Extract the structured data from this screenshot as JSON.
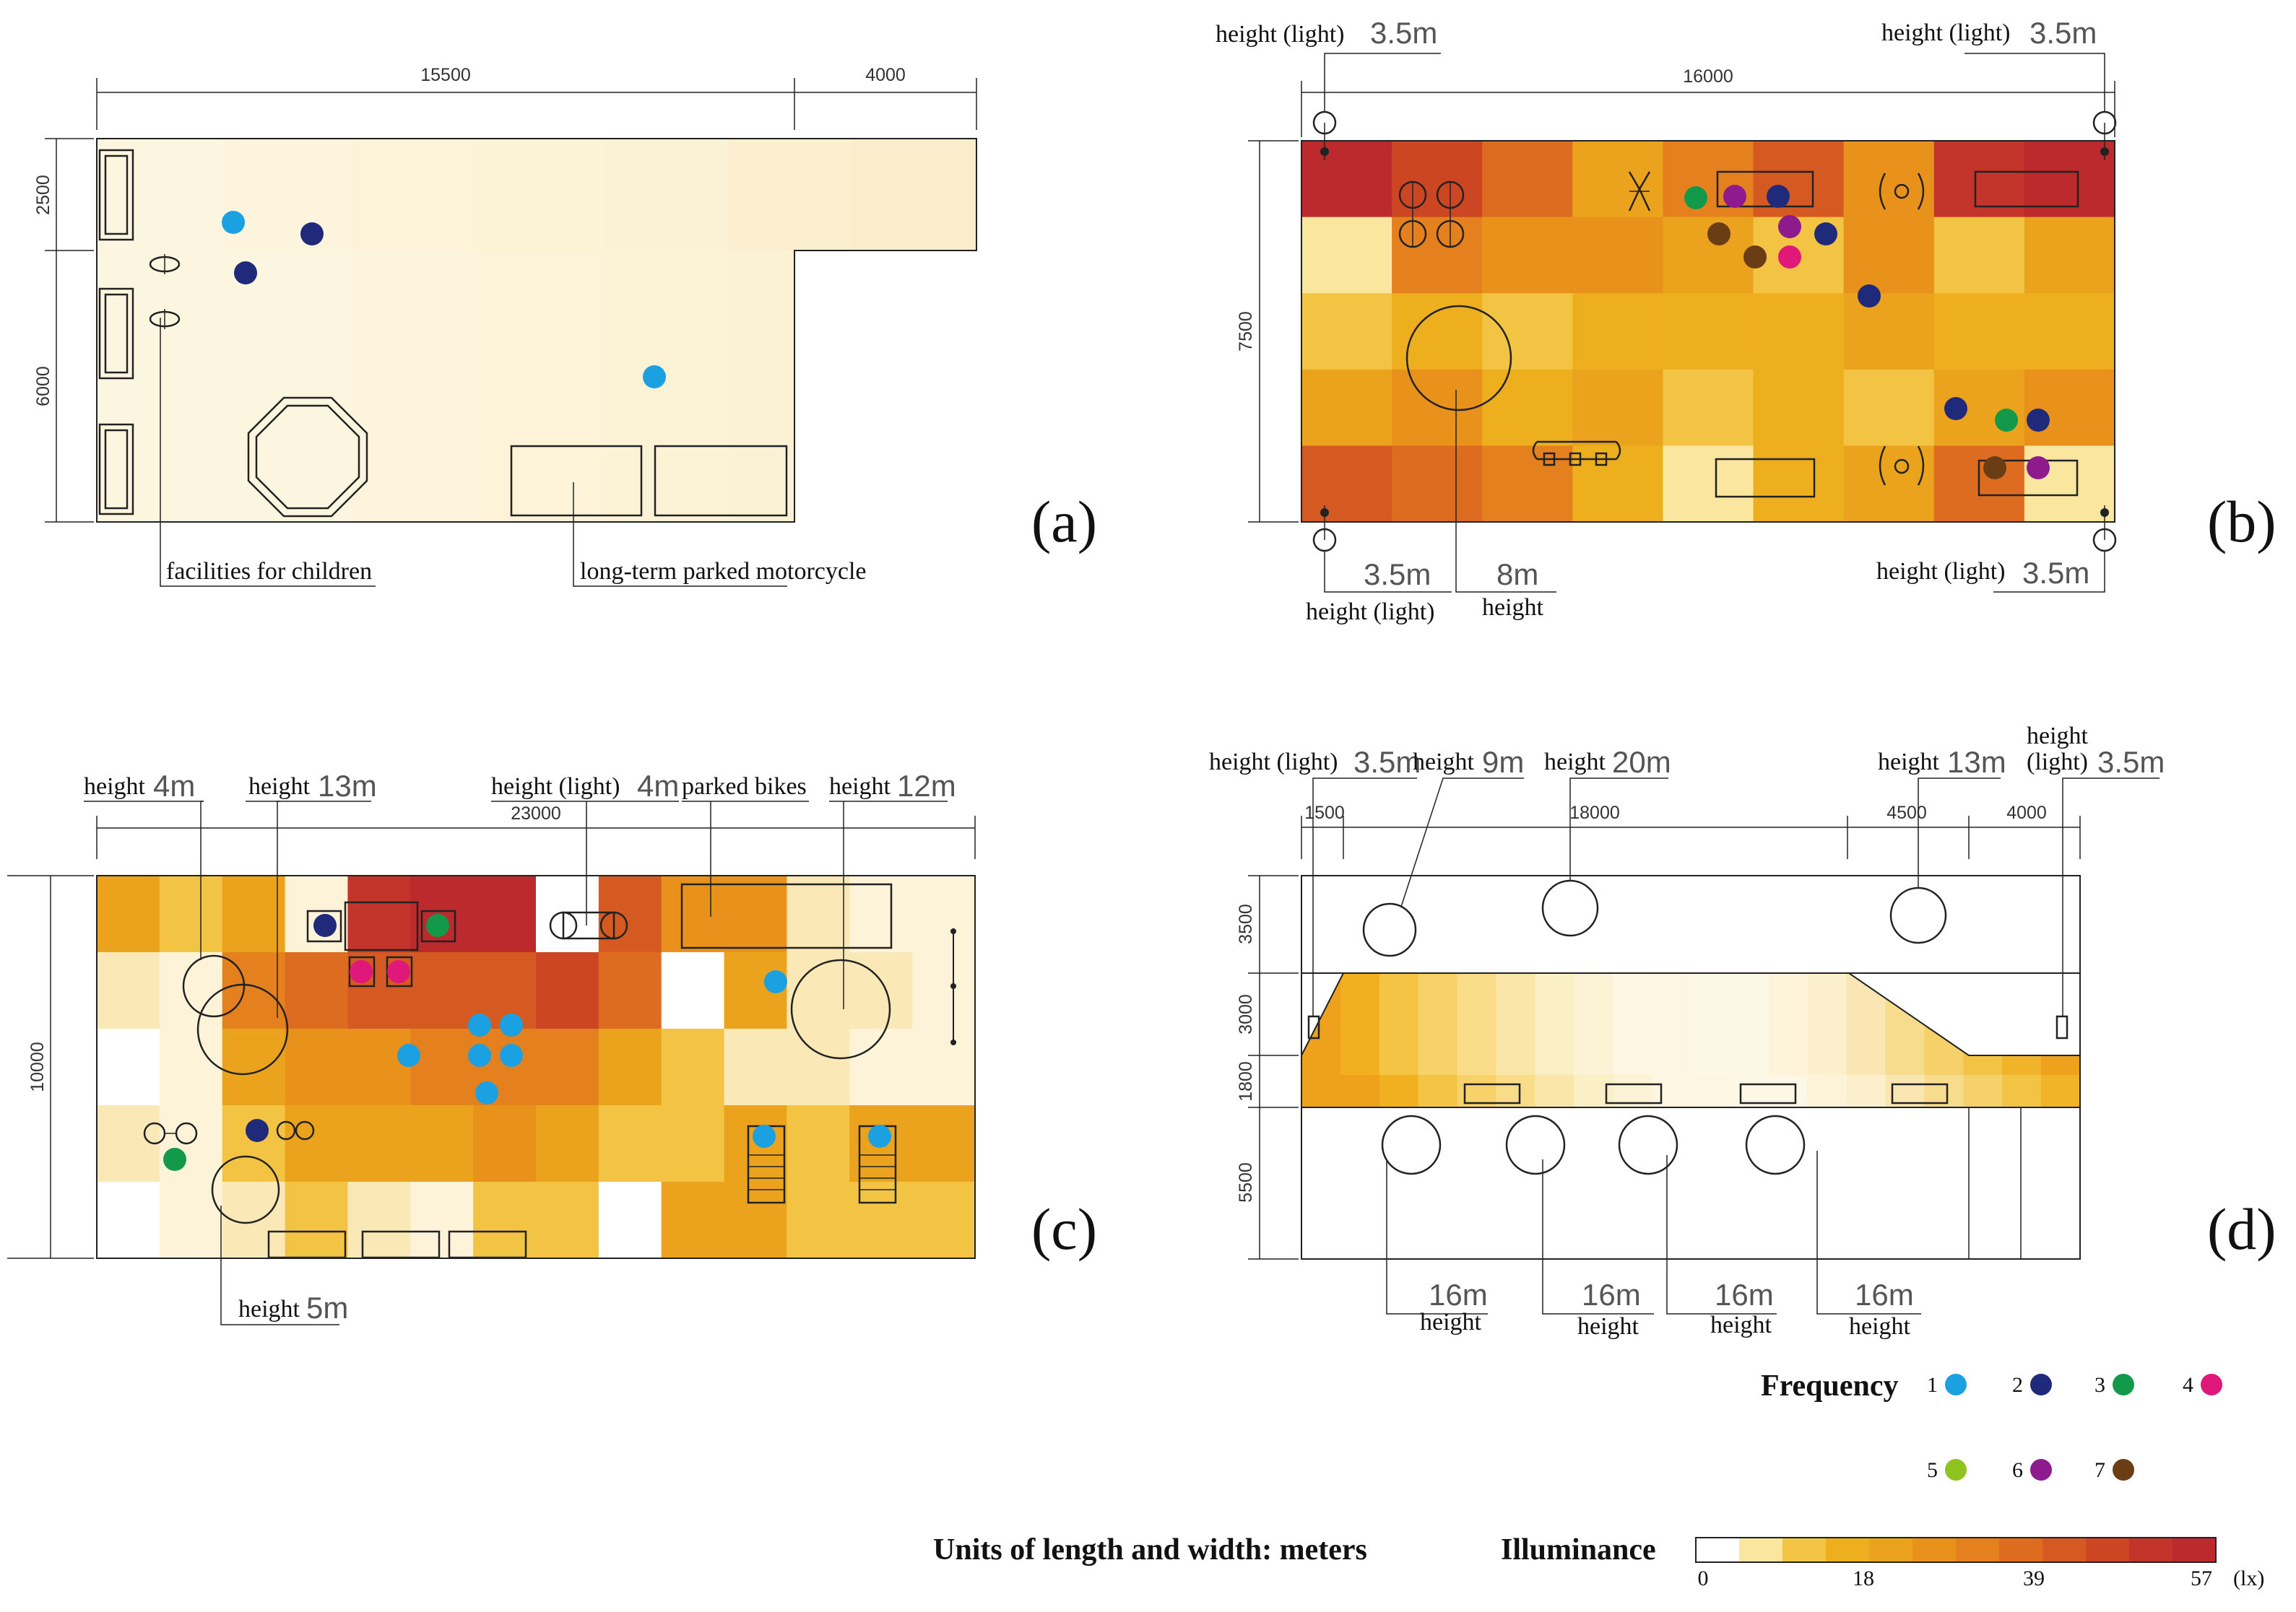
{
  "colors": {
    "freq": {
      "1": "#1ba1e2",
      "2": "#1f2a7a",
      "3": "#129a4a",
      "4": "#e0187a",
      "5": "#8fc31f",
      "6": "#8e1b8e",
      "7": "#6b3d14"
    },
    "scale": [
      "#ffffff",
      "#fbe6a0",
      "#f3c444",
      "#eeaf1f",
      "#eba21c",
      "#e8921c",
      "#e4801e",
      "#de6c20",
      "#d55a22",
      "#cc4624",
      "#c3342a",
      "#bd2a2e"
    ]
  },
  "panel_a": {
    "letter": "(a)",
    "dim_top_1": "15500",
    "dim_top_2": "4000",
    "dim_left_1": "2500",
    "dim_left_2": "6000",
    "label_children": "facilities for children",
    "label_motorcycle": "long-term parked motorcycle"
  },
  "panel_b": {
    "letter": "(b)",
    "dim_top": "16000",
    "dim_left": "7500",
    "tl_label": "height (light)",
    "tl_value": "3.5m",
    "tr_label": "height (light)",
    "tr_value": "3.5m",
    "bl_value": "3.5m",
    "bl_label": "height (light)",
    "tree_value": "8m",
    "tree_label": "height",
    "br_label": "height (light)",
    "br_value": "3.5m"
  },
  "panel_c": {
    "letter": "(c)",
    "dim_top": "23000",
    "dim_left": "10000",
    "h1_label": "height",
    "h1_value": "4m",
    "h2_label": "height",
    "h2_value": "13m",
    "h3_label": "height (light)",
    "h3_value": "4m",
    "bikes_label": "parked bikes",
    "h4_label": "height",
    "h4_value": "12m",
    "h5_label": "height",
    "h5_value": "5m"
  },
  "panel_d": {
    "letter": "(d)",
    "dim_top_1": "1500",
    "dim_top_2": "18000",
    "dim_top_3": "4500",
    "dim_top_4": "4000",
    "dim_left_1": "3500",
    "dim_left_2": "3000",
    "dim_left_3": "1800",
    "dim_left_4": "5500",
    "light_l_label": "height (light)",
    "light_l_value": "3.5m",
    "tree9_label": "height",
    "tree9_value": "9m",
    "tree20_label": "height",
    "tree20_value": "20m",
    "tree13_label": "height",
    "tree13_value": "13m",
    "light_r_label_1": "height",
    "light_r_label_2": "(light)",
    "light_r_value": "3.5m",
    "b1_value": "16m",
    "b1_label": "height",
    "b2_value": "16m",
    "b2_label": "height",
    "b3_value": "16m",
    "b3_label": "height",
    "b4_value": "16m",
    "b4_label": "height"
  },
  "legend": {
    "frequency_title": "Frequency",
    "freq_items": [
      "1",
      "2",
      "3",
      "4",
      "5",
      "6",
      "7"
    ],
    "units_text": "Units of length and width: meters",
    "illuminance_title": "Illuminance",
    "scale_ticks": [
      "0",
      "18",
      "39",
      "57"
    ],
    "scale_unit": "(lx)"
  }
}
